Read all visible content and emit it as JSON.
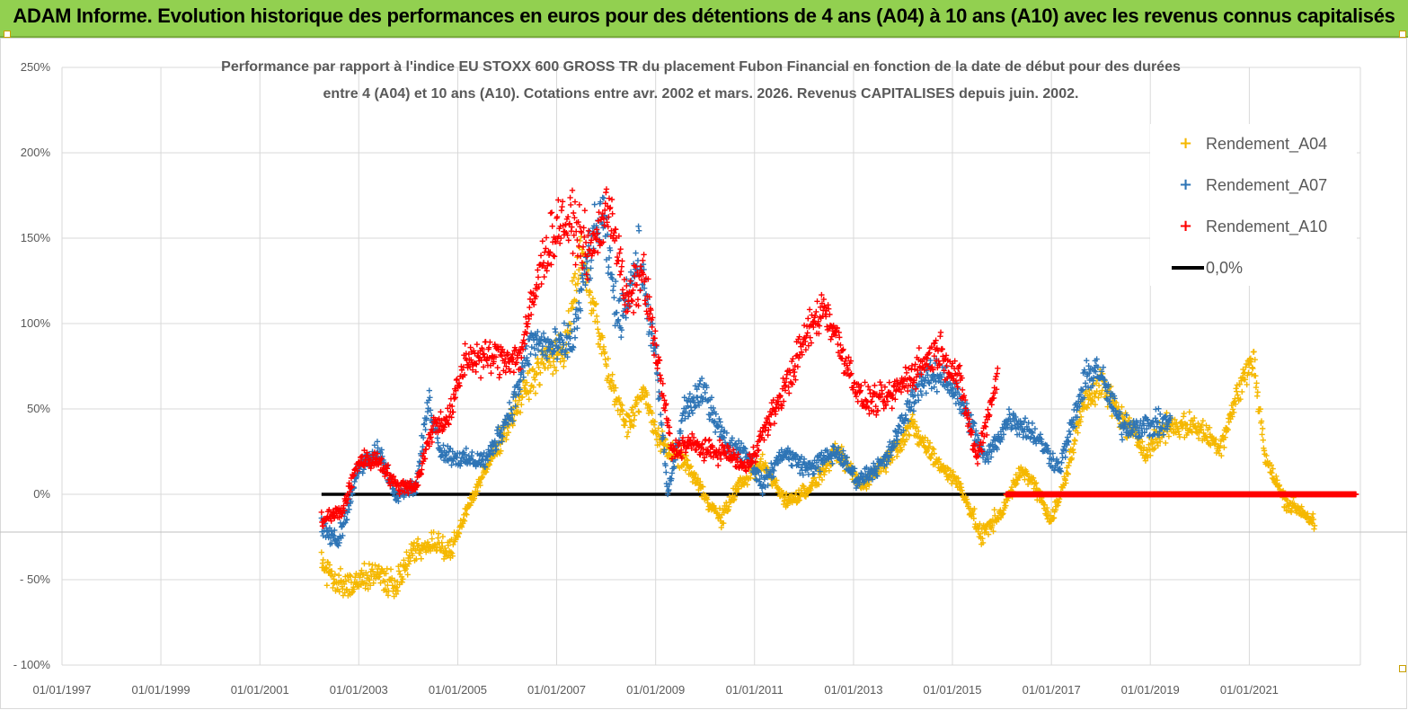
{
  "header": {
    "title": "ADAM Informe. Evolution historique des performances en euros pour des détentions de 4 ans (A04) à 10 ans (A10) avec les revenus connus capitalisés",
    "background": "#92d050"
  },
  "chart_data": {
    "type": "scatter",
    "title_lines": [
      "Performance par rapport à l'indice EU STOXX 600 GROSS TR  du placement Fubon Financial  en fonction de la date de début pour des durées",
      "entre 4 (A04) et 10 ans (A10). Cotations entre avr. 2002 et mars. 2026. Revenus CAPITALISES depuis juin. 2002."
    ],
    "x_axis": {
      "type": "date",
      "range": [
        "1997-01-01",
        "2023-04-01"
      ],
      "tick_labels": [
        "01/01/1997",
        "01/01/1999",
        "01/01/2001",
        "01/01/2003",
        "01/01/2005",
        "01/01/2007",
        "01/01/2009",
        "01/01/2011",
        "01/01/2013",
        "01/01/2015",
        "01/01/2017",
        "01/01/2019",
        "01/01/2021"
      ],
      "tick_dates": [
        "1997-01-01",
        "1999-01-01",
        "2001-01-01",
        "2003-01-01",
        "2005-01-01",
        "2007-01-01",
        "2009-01-01",
        "2011-01-01",
        "2013-01-01",
        "2015-01-01",
        "2017-01-01",
        "2019-01-01",
        "2021-01-01"
      ]
    },
    "y_axis": {
      "range": [
        -100,
        250
      ],
      "unit": "%",
      "tick_values": [
        250,
        200,
        150,
        100,
        50,
        0,
        -50,
        -100
      ],
      "tick_labels": [
        "250%",
        "200%",
        "150%",
        "100%",
        "50%",
        "0%",
        "- 50%",
        "- 100%"
      ]
    },
    "grid": true,
    "legend_position": "top-right",
    "series": [
      {
        "name": "Rendement_A04",
        "color": "#f5b800",
        "marker": "+",
        "anchors": [
          [
            "2002-04-01",
            -40
          ],
          [
            "2002-08-01",
            -52
          ],
          [
            "2003-01-01",
            -50
          ],
          [
            "2003-06-01",
            -47
          ],
          [
            "2003-10-01",
            -53
          ],
          [
            "2004-02-01",
            -35
          ],
          [
            "2004-07-01",
            -28
          ],
          [
            "2004-11-01",
            -35
          ],
          [
            "2005-03-01",
            -10
          ],
          [
            "2005-06-01",
            5
          ],
          [
            "2005-10-01",
            25
          ],
          [
            "2006-04-01",
            55
          ],
          [
            "2006-10-01",
            78
          ],
          [
            "2007-03-01",
            85
          ],
          [
            "2007-07-01",
            140
          ],
          [
            "2007-10-01",
            110
          ],
          [
            "2008-02-01",
            65
          ],
          [
            "2008-06-01",
            40
          ],
          [
            "2008-10-01",
            60
          ],
          [
            "2009-02-01",
            30
          ],
          [
            "2009-08-01",
            20
          ],
          [
            "2010-02-01",
            -5
          ],
          [
            "2010-05-01",
            -15
          ],
          [
            "2010-09-01",
            5
          ],
          [
            "2011-03-01",
            18
          ],
          [
            "2011-09-01",
            -5
          ],
          [
            "2012-03-01",
            5
          ],
          [
            "2012-09-01",
            25
          ],
          [
            "2013-03-01",
            5
          ],
          [
            "2013-09-01",
            20
          ],
          [
            "2014-03-01",
            40
          ],
          [
            "2014-09-01",
            20
          ],
          [
            "2015-03-01",
            5
          ],
          [
            "2015-08-01",
            -25
          ],
          [
            "2016-01-01",
            -10
          ],
          [
            "2016-06-01",
            15
          ],
          [
            "2016-09-01",
            5
          ],
          [
            "2017-01-01",
            -15
          ],
          [
            "2017-04-01",
            5
          ],
          [
            "2017-09-01",
            55
          ],
          [
            "2018-01-01",
            65
          ],
          [
            "2018-06-01",
            45
          ],
          [
            "2018-12-01",
            25
          ],
          [
            "2019-05-01",
            40
          ],
          [
            "2019-12-01",
            40
          ],
          [
            "2020-06-01",
            28
          ],
          [
            "2020-11-01",
            65
          ],
          [
            "2021-02-01",
            80
          ],
          [
            "2021-05-01",
            20
          ],
          [
            "2021-10-01",
            -5
          ],
          [
            "2022-02-01",
            -10
          ],
          [
            "2022-05-01",
            -18
          ]
        ]
      },
      {
        "name": "Rendement_A07",
        "color": "#2e75b6",
        "marker": "+",
        "anchors": [
          [
            "2002-04-01",
            -20
          ],
          [
            "2002-08-01",
            -28
          ],
          [
            "2003-01-01",
            15
          ],
          [
            "2003-06-01",
            25
          ],
          [
            "2003-10-01",
            0
          ],
          [
            "2004-03-01",
            5
          ],
          [
            "2004-06-01",
            55
          ],
          [
            "2004-09-01",
            25
          ],
          [
            "2005-03-01",
            20
          ],
          [
            "2005-08-01",
            20
          ],
          [
            "2006-02-01",
            50
          ],
          [
            "2006-07-01",
            90
          ],
          [
            "2007-01-01",
            85
          ],
          [
            "2007-05-01",
            90
          ],
          [
            "2007-08-01",
            130
          ],
          [
            "2007-12-01",
            165
          ],
          [
            "2008-04-01",
            100
          ],
          [
            "2008-09-01",
            140
          ],
          [
            "2009-01-01",
            80
          ],
          [
            "2009-04-01",
            0
          ],
          [
            "2009-08-01",
            50
          ],
          [
            "2010-01-01",
            60
          ],
          [
            "2010-06-01",
            30
          ],
          [
            "2010-11-01",
            25
          ],
          [
            "2011-03-01",
            5
          ],
          [
            "2011-08-01",
            25
          ],
          [
            "2012-02-01",
            15
          ],
          [
            "2012-09-01",
            25
          ],
          [
            "2013-02-01",
            8
          ],
          [
            "2013-09-01",
            20
          ],
          [
            "2014-05-01",
            65
          ],
          [
            "2014-11-01",
            70
          ],
          [
            "2015-05-01",
            45
          ],
          [
            "2015-09-01",
            20
          ],
          [
            "2016-03-01",
            45
          ],
          [
            "2016-09-01",
            35
          ],
          [
            "2017-03-01",
            15
          ],
          [
            "2017-09-01",
            65
          ],
          [
            "2017-12-01",
            75
          ],
          [
            "2018-06-01",
            40
          ],
          [
            "2019-01-01",
            40
          ],
          [
            "2019-06-01",
            42
          ]
        ]
      },
      {
        "name": "Rendement_A10",
        "color": "#ff0000",
        "marker": "+",
        "anchors": [
          [
            "2002-04-01",
            -15
          ],
          [
            "2002-09-01",
            -10
          ],
          [
            "2003-01-01",
            20
          ],
          [
            "2003-06-01",
            20
          ],
          [
            "2003-10-01",
            5
          ],
          [
            "2004-03-01",
            5
          ],
          [
            "2004-07-01",
            40
          ],
          [
            "2004-11-01",
            45
          ],
          [
            "2005-03-01",
            80
          ],
          [
            "2005-09-01",
            80
          ],
          [
            "2006-04-01",
            80
          ],
          [
            "2006-10-01",
            140
          ],
          [
            "2007-02-01",
            160
          ],
          [
            "2007-06-01",
            155
          ],
          [
            "2007-09-01",
            140
          ],
          [
            "2008-02-01",
            170
          ],
          [
            "2008-06-01",
            110
          ],
          [
            "2008-10-01",
            130
          ],
          [
            "2009-02-01",
            70
          ],
          [
            "2009-05-01",
            25
          ],
          [
            "2009-09-01",
            30
          ],
          [
            "2010-02-01",
            25
          ],
          [
            "2010-06-01",
            25
          ],
          [
            "2010-11-01",
            15
          ],
          [
            "2011-03-01",
            35
          ],
          [
            "2011-08-01",
            60
          ],
          [
            "2012-02-01",
            95
          ],
          [
            "2012-06-01",
            110
          ],
          [
            "2012-10-01",
            85
          ],
          [
            "2013-03-01",
            55
          ],
          [
            "2013-09-01",
            55
          ],
          [
            "2014-05-01",
            75
          ],
          [
            "2014-10-01",
            85
          ],
          [
            "2015-03-01",
            65
          ],
          [
            "2015-07-01",
            20
          ],
          [
            "2015-12-01",
            70
          ]
        ],
        "zero_segment": [
          "2016-02-01",
          "2023-03-01"
        ]
      },
      {
        "name": "0,0%",
        "color": "#000000",
        "type": "line",
        "x_range": [
          "2002-04-01",
          "2016-02-01"
        ],
        "value": 0
      }
    ]
  }
}
